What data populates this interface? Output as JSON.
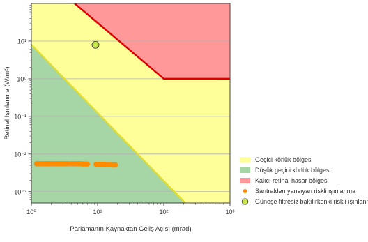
{
  "chart_data": {
    "type": "area",
    "xlabel": "Parlamanın Kaynaktan Geliş Açısı (mrad)",
    "ylabel": "Retinal Işınlanma (W/m²)",
    "xscale": "log",
    "yscale": "log",
    "xlim": [
      1,
      1000
    ],
    "ylim": [
      0.0005,
      100
    ],
    "x_ticks": [
      {
        "value": 1,
        "label": "10⁰"
      },
      {
        "value": 10,
        "label": "10¹"
      },
      {
        "value": 100,
        "label": "10²"
      },
      {
        "value": 1000,
        "label": "10³"
      }
    ],
    "y_ticks": [
      {
        "value": 0.001,
        "label": "10⁻³"
      },
      {
        "value": 0.01,
        "label": "10⁻²"
      },
      {
        "value": 0.1,
        "label": "10⁻¹"
      },
      {
        "value": 1,
        "label": "10⁰"
      },
      {
        "value": 10,
        "label": "10¹"
      }
    ],
    "grid": "horizontal",
    "legend_position": "right",
    "regions": [
      {
        "name": "Geçici körlük bölgesi",
        "color": "#ffff99"
      },
      {
        "name": "Düşük geçici körlük bölgesi",
        "color": "#a6d6a6"
      },
      {
        "name": "Kalıcı retinal hasar bölgesi",
        "color": "#ff9999"
      }
    ],
    "boundaries": {
      "low_transient_upper": [
        [
          1,
          8
        ],
        [
          210,
          0.0005
        ]
      ],
      "permanent_damage_lower": [
        [
          4.5,
          100
        ],
        [
          100,
          1
        ],
        [
          1000,
          1
        ]
      ]
    },
    "series": [
      {
        "name": "Santralden yansıyan riskli ışınlanma",
        "type": "scatter",
        "color": "#ff8c00",
        "points": [
          [
            1.2,
            0.0055
          ],
          [
            1.3,
            0.0055
          ],
          [
            1.4,
            0.0055
          ],
          [
            1.5,
            0.0055
          ],
          [
            1.6,
            0.0055
          ],
          [
            1.7,
            0.0055
          ],
          [
            1.8,
            0.0055
          ],
          [
            1.9,
            0.0055
          ],
          [
            2.0,
            0.0055
          ],
          [
            2.2,
            0.0055
          ],
          [
            2.4,
            0.0055
          ],
          [
            2.6,
            0.0055
          ],
          [
            2.8,
            0.0055
          ],
          [
            3.0,
            0.0055
          ],
          [
            3.3,
            0.0055
          ],
          [
            3.6,
            0.0055
          ],
          [
            4.0,
            0.0055
          ],
          [
            4.4,
            0.0055
          ],
          [
            4.8,
            0.0055
          ],
          [
            5.2,
            0.0055
          ],
          [
            5.6,
            0.0055
          ],
          [
            6.0,
            0.0054
          ],
          [
            6.5,
            0.0054
          ],
          [
            7.0,
            0.0054
          ],
          [
            9.5,
            0.0053
          ],
          [
            10.5,
            0.0053
          ],
          [
            11.5,
            0.0053
          ],
          [
            12.5,
            0.0053
          ],
          [
            13.5,
            0.0052
          ],
          [
            14.5,
            0.0052
          ],
          [
            15.5,
            0.0052
          ],
          [
            16.5,
            0.0051
          ],
          [
            17.5,
            0.0051
          ],
          [
            18.5,
            0.0051
          ]
        ]
      },
      {
        "name": "Güneşe filtresiz bakılırkenki riskli ışınlanma",
        "type": "scatter",
        "color": "#c8e650",
        "edge_color": "#555555",
        "points": [
          [
            9.3,
            8
          ]
        ]
      }
    ]
  }
}
